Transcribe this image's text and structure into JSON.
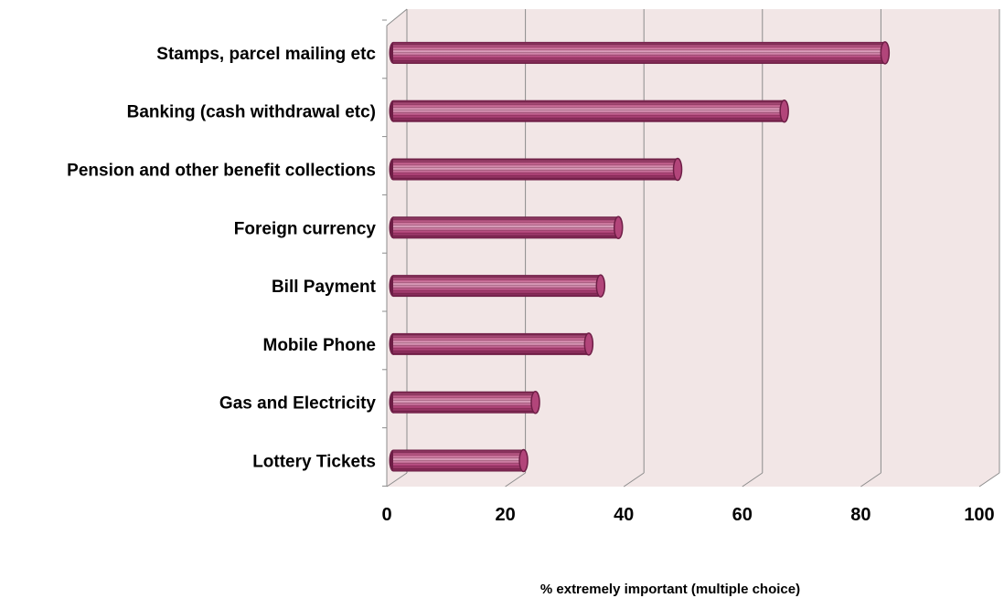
{
  "chart_data": {
    "type": "bar",
    "orientation": "horizontal",
    "categories": [
      "Stamps, parcel mailing etc",
      "Banking (cash withdrawal etc)",
      "Pension and other benefit collections",
      "Foreign currency",
      "Bill Payment",
      "Mobile Phone",
      "Gas and Electricity",
      "Lottery Tickets"
    ],
    "values": [
      83,
      66,
      48,
      38,
      35,
      33,
      24,
      22
    ],
    "xlabel": "% extremely important  (multiple choice)",
    "ylabel": "",
    "xlim": [
      0,
      100
    ],
    "xticks": [
      "0",
      "20",
      "40",
      "60",
      "80",
      "100"
    ],
    "grid": true,
    "style": "3d-cylinder",
    "colors": {
      "bar": "#b2457a",
      "bar_dark": "#6e1e46",
      "bar_light": "#d9a0bb",
      "plot_bg": "#f2e6e6",
      "grid": "#8c8c8c"
    }
  }
}
